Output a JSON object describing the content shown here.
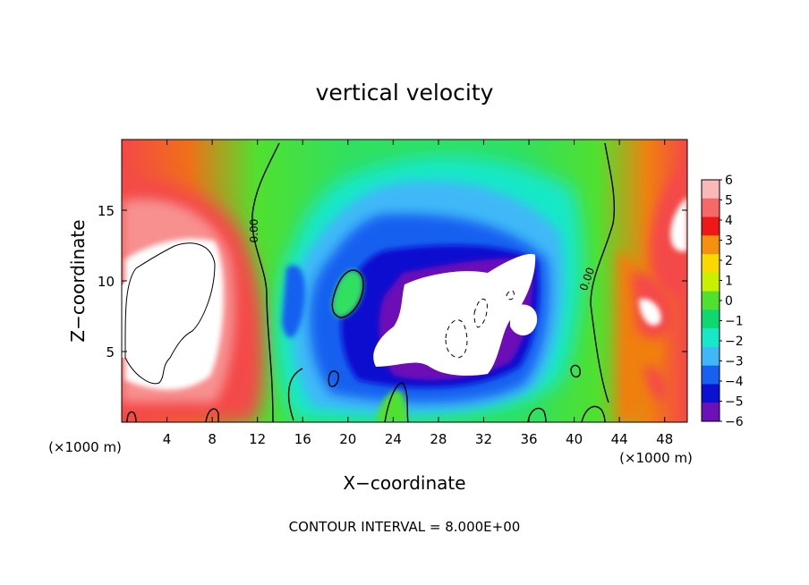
{
  "chart_data": {
    "type": "heatmap",
    "title": "vertical velocity",
    "xlabel": "X−coordinate",
    "ylabel": "Z−coordinate",
    "x_unit_left": "(×1000 m)",
    "x_unit_right": "(×1000 m)",
    "xlim": [
      0,
      50
    ],
    "ylim": [
      0,
      20
    ],
    "x_ticks": [
      4,
      8,
      12,
      16,
      20,
      24,
      28,
      32,
      36,
      40,
      44,
      48
    ],
    "y_ticks": [
      5,
      10,
      15
    ],
    "colorbar": {
      "ticks": [
        "6",
        "5",
        "4",
        "3",
        "2",
        "1",
        "0",
        "−1",
        "−2",
        "−3",
        "−4",
        "−5",
        "−6"
      ],
      "colors": [
        "#fbb8b8",
        "#f76868",
        "#ef1818",
        "#f59010",
        "#fbd800",
        "#c8f000",
        "#50e030",
        "#10d870",
        "#18e8c8",
        "#40b8f8",
        "#1860f0",
        "#0c10d0",
        "#6c10b8"
      ]
    },
    "contour_labels": [
      "0.00",
      "0.00"
    ],
    "contour_interval_text": "CONTOUR INTERVAL = 8.000E+00",
    "grid": false,
    "legend_placement": "right"
  }
}
